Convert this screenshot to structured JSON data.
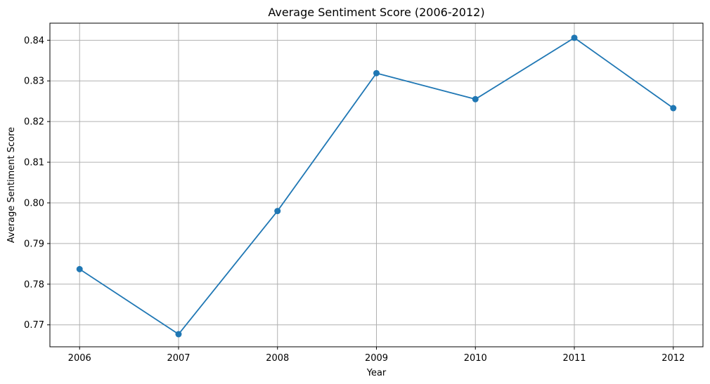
{
  "chart_data": {
    "type": "line",
    "title": "Average Sentiment Score (2006-2012)",
    "xlabel": "Year",
    "ylabel": "Average Sentiment Score",
    "x": [
      "2006",
      "2007",
      "2008",
      "2009",
      "2010",
      "2011",
      "2012"
    ],
    "series": [
      {
        "values": [
          0.7837,
          0.7677,
          0.798,
          0.8319,
          0.8255,
          0.8406,
          0.8233
        ],
        "color": "#1f77b4",
        "marker": "circle"
      }
    ],
    "y_ticks": [
      "0.77",
      "0.78",
      "0.79",
      "0.80",
      "0.81",
      "0.82",
      "0.83",
      "0.84"
    ],
    "xlim": [
      2005.7,
      2012.3
    ],
    "ylim": [
      0.7646,
      0.8442
    ],
    "grid": true,
    "legend": "none"
  }
}
